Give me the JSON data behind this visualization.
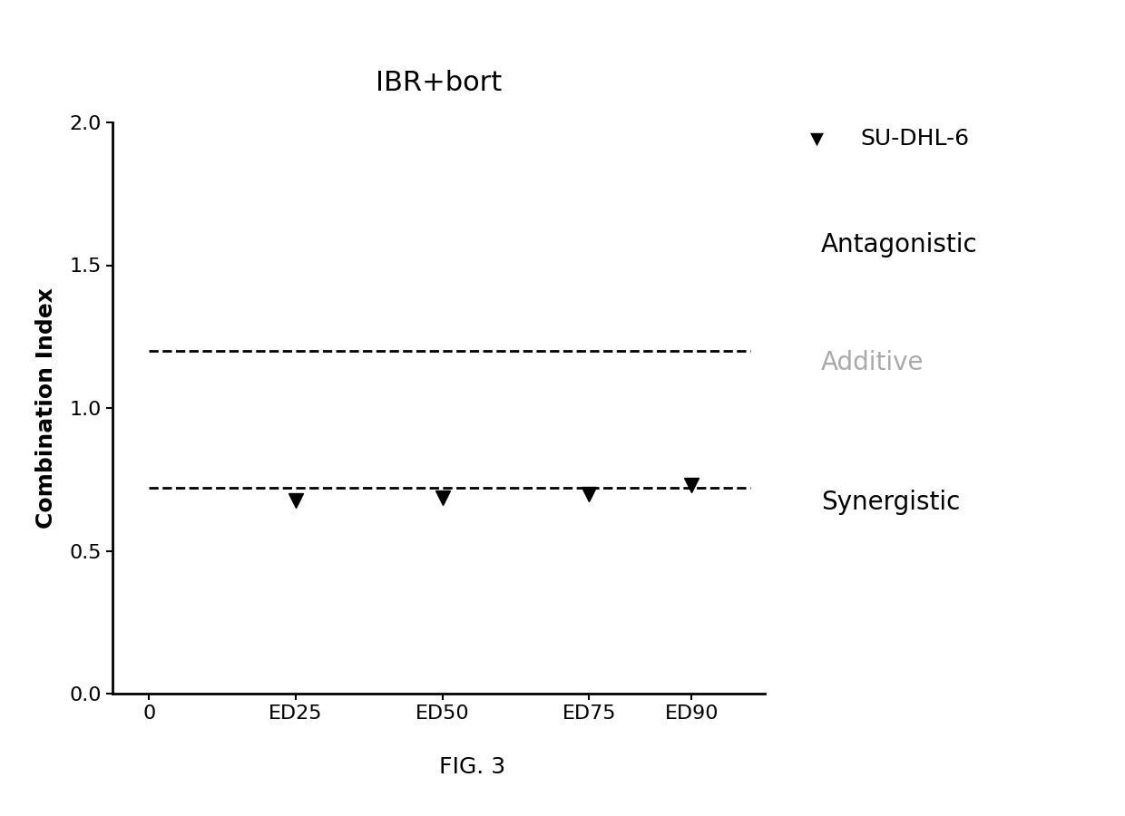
{
  "title": "IBR+bort",
  "ylabel": "Combination Index",
  "fig_caption": "FIG. 3",
  "x_positions": [
    1,
    2,
    3,
    3.7
  ],
  "x_tick_positions": [
    0,
    1,
    2,
    3,
    3.7
  ],
  "x_tick_labels": [
    "0",
    "ED25",
    "ED50",
    "ED75",
    "ED90"
  ],
  "y_data": [
    0.675,
    0.685,
    0.7,
    0.73
  ],
  "ylim": [
    0.0,
    2.0
  ],
  "yticks": [
    0.0,
    0.5,
    1.0,
    1.5,
    2.0
  ],
  "dashed_line_upper": 1.2,
  "dashed_line_lower": 0.72,
  "marker_color": "#000000",
  "dashed_color": "#000000",
  "legend_label": "SU-DHL-6",
  "annotation_antagonistic": "Antagonistic",
  "annotation_additive": "Additive",
  "annotation_synergistic": "Synergistic",
  "additive_color": "#aaaaaa",
  "annotation_color": "#000000",
  "background_color": "#ffffff",
  "title_fontsize": 22,
  "axis_label_fontsize": 18,
  "tick_fontsize": 16,
  "legend_fontsize": 18,
  "annotation_fontsize": 20,
  "caption_fontsize": 18
}
